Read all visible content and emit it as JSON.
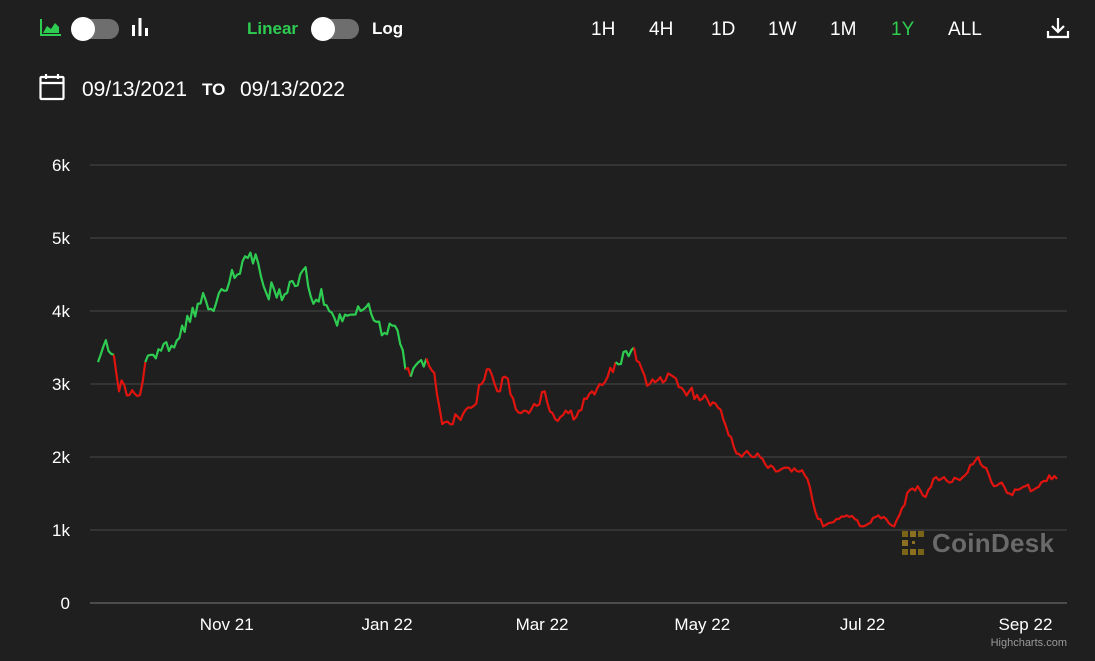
{
  "toolbar": {
    "chart_style_icons": [
      "area-chart-icon",
      "bar-chart-icon"
    ],
    "scale_linear_label": "Linear",
    "scale_log_label": "Log",
    "ranges": [
      "1H",
      "4H",
      "1D",
      "1W",
      "1M",
      "1Y",
      "ALL"
    ],
    "active_range": "1Y",
    "download_icon": "download-icon"
  },
  "date_range": {
    "from": "09/13/2021",
    "to_label": "TO",
    "to": "09/13/2022"
  },
  "watermark": "CoinDesk",
  "credit": "Highcharts.com",
  "colors": {
    "background": "#1f1f1f",
    "up": "#2ecc51",
    "down": "#e0140f",
    "grid": "#4a4a4a",
    "text": "#ffffff"
  },
  "chart_data": {
    "type": "line",
    "title": "",
    "xlabel": "",
    "ylabel": "",
    "x_start": "2021-09-13",
    "x_end": "2022-09-13",
    "ylim": [
      0,
      6000
    ],
    "y_ticks": [
      "0",
      "1k",
      "2k",
      "3k",
      "4k",
      "5k",
      "6k"
    ],
    "y_tick_values": [
      0,
      1000,
      2000,
      3000,
      4000,
      5000,
      6000
    ],
    "x_ticks": [
      "Nov 21",
      "Jan 22",
      "Mar 22",
      "May 22",
      "Jul 22",
      "Sep 22"
    ],
    "x_tick_dates": [
      "2021-11-01",
      "2022-01-01",
      "2022-03-01",
      "2022-05-01",
      "2022-07-01",
      "2022-09-01"
    ],
    "grid": true,
    "legend": "none",
    "points": [
      [
        "2021-09-13",
        3300
      ],
      [
        "2021-09-16",
        3600
      ],
      [
        "2021-09-19",
        3400
      ],
      [
        "2021-09-21",
        2900
      ],
      [
        "2021-09-22",
        3050
      ],
      [
        "2021-09-25",
        2850
      ],
      [
        "2021-09-29",
        2850
      ],
      [
        "2021-10-01",
        3300
      ],
      [
        "2021-10-04",
        3400
      ],
      [
        "2021-10-08",
        3550
      ],
      [
        "2021-10-12",
        3500
      ],
      [
        "2021-10-15",
        3800
      ],
      [
        "2021-10-18",
        3850
      ],
      [
        "2021-10-21",
        4100
      ],
      [
        "2021-10-24",
        4150
      ],
      [
        "2021-10-27",
        4000
      ],
      [
        "2021-10-30",
        4300
      ],
      [
        "2021-11-02",
        4400
      ],
      [
        "2021-11-05",
        4500
      ],
      [
        "2021-11-08",
        4750
      ],
      [
        "2021-11-10",
        4800
      ],
      [
        "2021-11-13",
        4650
      ],
      [
        "2021-11-16",
        4250
      ],
      [
        "2021-11-19",
        4300
      ],
      [
        "2021-11-22",
        4150
      ],
      [
        "2021-11-25",
        4400
      ],
      [
        "2021-11-28",
        4350
      ],
      [
        "2021-12-01",
        4600
      ],
      [
        "2021-12-04",
        4100
      ],
      [
        "2021-12-07",
        4300
      ],
      [
        "2021-12-10",
        4000
      ],
      [
        "2021-12-13",
        3800
      ],
      [
        "2021-12-16",
        3950
      ],
      [
        "2021-12-19",
        3950
      ],
      [
        "2021-12-22",
        4000
      ],
      [
        "2021-12-25",
        4100
      ],
      [
        "2021-12-28",
        3850
      ],
      [
        "2021-12-31",
        3700
      ],
      [
        "2022-01-03",
        3800
      ],
      [
        "2022-01-06",
        3550
      ],
      [
        "2022-01-08",
        3200
      ],
      [
        "2022-01-10",
        3100
      ],
      [
        "2022-01-13",
        3300
      ],
      [
        "2022-01-16",
        3350
      ],
      [
        "2022-01-19",
        3150
      ],
      [
        "2022-01-22",
        2450
      ],
      [
        "2022-01-25",
        2450
      ],
      [
        "2022-01-28",
        2550
      ],
      [
        "2022-01-31",
        2650
      ],
      [
        "2022-02-03",
        2700
      ],
      [
        "2022-02-06",
        3000
      ],
      [
        "2022-02-09",
        3200
      ],
      [
        "2022-02-12",
        2900
      ],
      [
        "2022-02-15",
        3100
      ],
      [
        "2022-02-18",
        2800
      ],
      [
        "2022-02-21",
        2600
      ],
      [
        "2022-02-24",
        2600
      ],
      [
        "2022-02-27",
        2700
      ],
      [
        "2022-03-02",
        2900
      ],
      [
        "2022-03-05",
        2600
      ],
      [
        "2022-03-08",
        2550
      ],
      [
        "2022-03-11",
        2600
      ],
      [
        "2022-03-14",
        2550
      ],
      [
        "2022-03-17",
        2800
      ],
      [
        "2022-03-20",
        2900
      ],
      [
        "2022-03-23",
        3000
      ],
      [
        "2022-03-26",
        3100
      ],
      [
        "2022-03-29",
        3300
      ],
      [
        "2022-04-02",
        3450
      ],
      [
        "2022-04-05",
        3500
      ],
      [
        "2022-04-08",
        3200
      ],
      [
        "2022-04-11",
        3000
      ],
      [
        "2022-04-14",
        3050
      ],
      [
        "2022-04-17",
        3050
      ],
      [
        "2022-04-20",
        3100
      ],
      [
        "2022-04-23",
        2950
      ],
      [
        "2022-04-26",
        2900
      ],
      [
        "2022-04-29",
        2850
      ],
      [
        "2022-05-02",
        2850
      ],
      [
        "2022-05-05",
        2750
      ],
      [
        "2022-05-08",
        2650
      ],
      [
        "2022-05-11",
        2300
      ],
      [
        "2022-05-14",
        2050
      ],
      [
        "2022-05-17",
        2050
      ],
      [
        "2022-05-20",
        2000
      ],
      [
        "2022-05-23",
        2000
      ],
      [
        "2022-05-26",
        1850
      ],
      [
        "2022-05-29",
        1800
      ],
      [
        "2022-06-01",
        1850
      ],
      [
        "2022-06-04",
        1800
      ],
      [
        "2022-06-07",
        1800
      ],
      [
        "2022-06-10",
        1700
      ],
      [
        "2022-06-13",
        1250
      ],
      [
        "2022-06-16",
        1050
      ],
      [
        "2022-06-19",
        1100
      ],
      [
        "2022-06-22",
        1150
      ],
      [
        "2022-06-25",
        1200
      ],
      [
        "2022-06-28",
        1150
      ],
      [
        "2022-07-01",
        1050
      ],
      [
        "2022-07-04",
        1100
      ],
      [
        "2022-07-07",
        1200
      ],
      [
        "2022-07-10",
        1150
      ],
      [
        "2022-07-13",
        1050
      ],
      [
        "2022-07-16",
        1300
      ],
      [
        "2022-07-19",
        1550
      ],
      [
        "2022-07-22",
        1600
      ],
      [
        "2022-07-25",
        1450
      ],
      [
        "2022-07-28",
        1700
      ],
      [
        "2022-07-31",
        1700
      ],
      [
        "2022-08-03",
        1650
      ],
      [
        "2022-08-06",
        1700
      ],
      [
        "2022-08-09",
        1750
      ],
      [
        "2022-08-12",
        1900
      ],
      [
        "2022-08-14",
        2000
      ],
      [
        "2022-08-17",
        1850
      ],
      [
        "2022-08-20",
        1600
      ],
      [
        "2022-08-23",
        1650
      ],
      [
        "2022-08-26",
        1500
      ],
      [
        "2022-08-29",
        1550
      ],
      [
        "2022-09-01",
        1600
      ],
      [
        "2022-09-04",
        1550
      ],
      [
        "2022-09-07",
        1650
      ],
      [
        "2022-09-10",
        1750
      ],
      [
        "2022-09-13",
        1700
      ]
    ],
    "segments": [
      {
        "trend": "up",
        "start": "2021-09-13",
        "end": "2021-09-19"
      },
      {
        "trend": "down",
        "start": "2021-09-19",
        "end": "2021-10-01"
      },
      {
        "trend": "up",
        "start": "2021-10-01",
        "end": "2022-01-08"
      },
      {
        "trend": "down",
        "start": "2022-01-08",
        "end": "2022-01-10"
      },
      {
        "trend": "up",
        "start": "2022-01-10",
        "end": "2022-01-16"
      },
      {
        "trend": "down",
        "start": "2022-01-16",
        "end": "2022-03-29"
      },
      {
        "trend": "up",
        "start": "2022-03-29",
        "end": "2022-04-05"
      },
      {
        "trend": "down",
        "start": "2022-04-05",
        "end": "2022-09-13"
      }
    ]
  }
}
